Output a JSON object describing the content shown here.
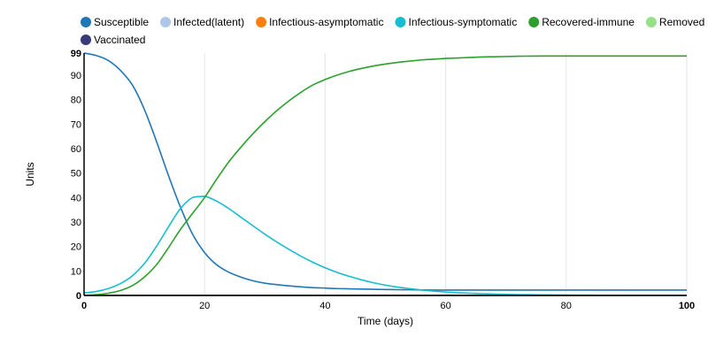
{
  "chart_data": {
    "type": "line",
    "title": "",
    "xlabel": "Time (days)",
    "ylabel": "Units",
    "xlim": [
      0,
      100
    ],
    "ylim": [
      0,
      99
    ],
    "x_ticks": [
      0,
      20,
      40,
      60,
      80,
      100
    ],
    "x_tick_labels": [
      "0",
      "20",
      "40",
      "60",
      "80",
      "100"
    ],
    "y_ticks": [
      0,
      10,
      20,
      30,
      40,
      50,
      60,
      70,
      80,
      90,
      99
    ],
    "y_tick_labels": [
      "0",
      "10",
      "20",
      "30",
      "40",
      "50",
      "60",
      "70",
      "80",
      "90",
      "99"
    ],
    "grid": "vertical",
    "legend_position": "top-left",
    "x": [
      0,
      2,
      4,
      6,
      8,
      10,
      12,
      14,
      16,
      18,
      20,
      22,
      24,
      26,
      28,
      30,
      32,
      34,
      36,
      38,
      40,
      42,
      44,
      46,
      48,
      50,
      52,
      54,
      56,
      58,
      60,
      62,
      64,
      66,
      68,
      70,
      72,
      74,
      76,
      78,
      80,
      82,
      84,
      86,
      88,
      90,
      92,
      94,
      96,
      98,
      100
    ],
    "series": [
      {
        "name": "Susceptible",
        "color": "#1f77b4",
        "values": [
          99,
          98,
          96,
          92,
          86,
          76,
          63,
          49,
          36,
          25,
          17.5,
          12.5,
          9.5,
          7.5,
          6,
          5,
          4.4,
          3.9,
          3.5,
          3.2,
          3,
          2.8,
          2.7,
          2.6,
          2.5,
          2.4,
          2.35,
          2.3,
          2.25,
          2.2,
          2.2,
          2.2,
          2.2,
          2.2,
          2.2,
          2.2,
          2.2,
          2.2,
          2.2,
          2.2,
          2.2,
          2.2,
          2.2,
          2.2,
          2.2,
          2.2,
          2.2,
          2.2,
          2.2,
          2.2,
          2.2
        ]
      },
      {
        "name": "Infected(latent)",
        "color": "#aec7e8",
        "values": [
          0,
          0,
          0,
          0,
          0,
          0,
          0,
          0,
          0,
          0,
          0,
          0,
          0,
          0,
          0,
          0,
          0,
          0,
          0,
          0,
          0,
          0,
          0,
          0,
          0,
          0,
          0,
          0,
          0,
          0,
          0,
          0,
          0,
          0,
          0,
          0,
          0,
          0,
          0,
          0,
          0,
          0,
          0,
          0,
          0,
          0,
          0,
          0,
          0,
          0,
          0
        ]
      },
      {
        "name": "Infectious-asymptomatic",
        "color": "#ff7f0e",
        "values": [
          0,
          0,
          0,
          0,
          0,
          0,
          0,
          0,
          0,
          0,
          0,
          0,
          0,
          0,
          0,
          0,
          0,
          0,
          0,
          0,
          0,
          0,
          0,
          0,
          0,
          0,
          0,
          0,
          0,
          0,
          0,
          0,
          0,
          0,
          0,
          0,
          0,
          0,
          0,
          0,
          0,
          0,
          0,
          0,
          0,
          0,
          0,
          0,
          0,
          0,
          0
        ]
      },
      {
        "name": "Infectious-symptomatic",
        "color": "#17becf",
        "values": [
          1,
          1.6,
          2.8,
          4.8,
          8,
          13,
          20,
          28,
          35.5,
          40,
          40.5,
          38.5,
          35.5,
          32,
          28.5,
          25,
          21.8,
          18.8,
          16,
          13.5,
          11.3,
          9.4,
          7.8,
          6.4,
          5.2,
          4.2,
          3.4,
          2.8,
          2.2,
          1.8,
          1.4,
          1.1,
          0.9,
          0.7,
          0.55,
          0.45,
          0.35,
          0.28,
          0.22,
          0.18,
          0.14,
          0.12,
          0.1,
          0.08,
          0.06,
          0.05,
          0.04,
          0.03,
          0.03,
          0.02,
          0.02
        ]
      },
      {
        "name": "Recovered-immune",
        "color": "#2ca02c",
        "values": [
          0,
          0.3,
          0.9,
          2,
          4,
          7.5,
          12.5,
          19.5,
          27,
          33.5,
          40,
          47.5,
          54.5,
          60.5,
          66,
          71,
          75.5,
          79.5,
          83,
          86,
          88.2,
          90,
          91.5,
          92.7,
          93.7,
          94.5,
          95.2,
          95.7,
          96.2,
          96.5,
          96.8,
          97,
          97.2,
          97.4,
          97.5,
          97.6,
          97.7,
          97.75,
          97.8,
          97.8,
          97.8,
          97.8,
          97.8,
          97.8,
          97.8,
          97.8,
          97.8,
          97.8,
          97.8,
          97.8,
          97.8
        ]
      },
      {
        "name": "Removed",
        "color": "#98df8a",
        "values": [
          0,
          0,
          0,
          0,
          0,
          0,
          0,
          0,
          0,
          0,
          0,
          0,
          0,
          0,
          0,
          0,
          0,
          0,
          0,
          0,
          0,
          0,
          0,
          0,
          0,
          0,
          0,
          0,
          0,
          0,
          0,
          0,
          0,
          0,
          0,
          0,
          0,
          0,
          0,
          0,
          0,
          0,
          0,
          0,
          0,
          0,
          0,
          0,
          0,
          0,
          0
        ]
      },
      {
        "name": "Vaccinated",
        "color": "#393b79",
        "values": [
          0,
          0,
          0,
          0,
          0,
          0,
          0,
          0,
          0,
          0,
          0,
          0,
          0,
          0,
          0,
          0,
          0,
          0,
          0,
          0,
          0,
          0,
          0,
          0,
          0,
          0,
          0,
          0,
          0,
          0,
          0,
          0,
          0,
          0,
          0,
          0,
          0,
          0,
          0,
          0,
          0,
          0,
          0,
          0,
          0,
          0,
          0,
          0,
          0,
          0,
          0
        ]
      }
    ]
  }
}
